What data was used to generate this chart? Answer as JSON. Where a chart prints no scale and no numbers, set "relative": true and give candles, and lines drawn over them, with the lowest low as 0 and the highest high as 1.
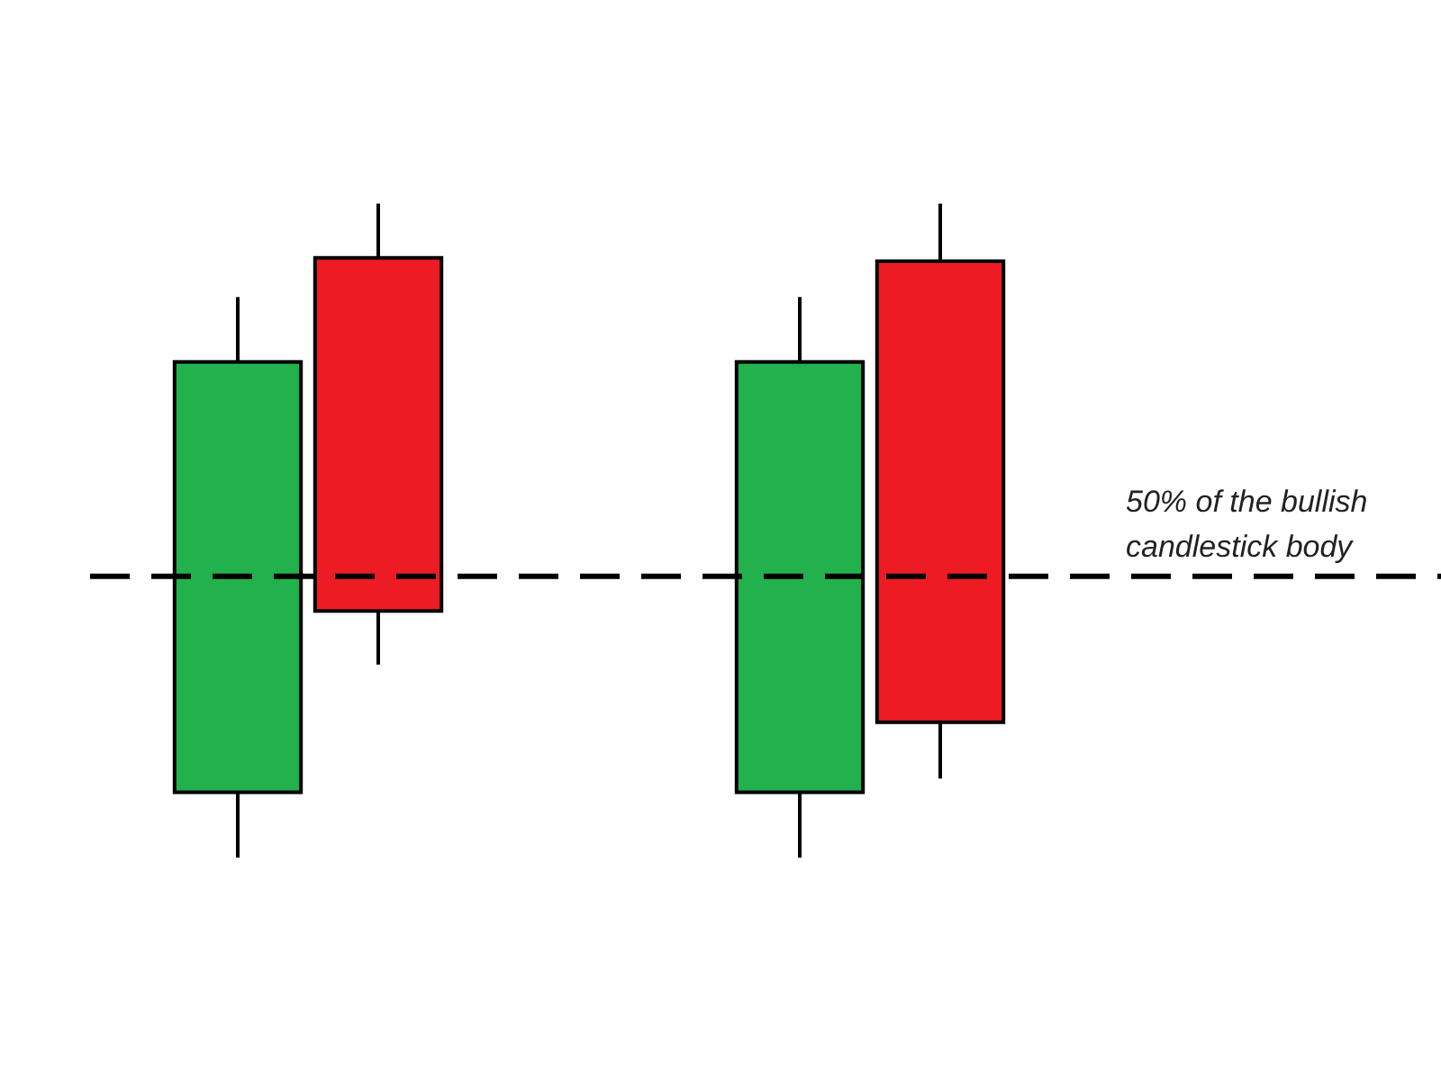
{
  "chart_data": {
    "type": "candlestick",
    "relative": true,
    "categories": [
      null,
      null,
      null,
      null,
      null,
      null
    ],
    "ohlc": [
      [
        0.1,
        0.857,
        0,
        0.758
      ],
      [
        0.917,
        1,
        0.295,
        0.377
      ],
      null,
      null,
      [
        0.1,
        0.857,
        0,
        0.758
      ],
      [
        0.912,
        1,
        0.121,
        0.207
      ]
    ],
    "colors": [
      "#22b14c",
      "#ed1c24",
      null,
      null,
      "#22b14c",
      "#ed1c24"
    ],
    "ref_lines": [
      {
        "axis": "y",
        "value": 0.43,
        "label": "50% of the bullish candlestick body",
        "color": "#000000",
        "line_style": "dashed"
      }
    ],
    "legend": false,
    "tick_labels": false
  }
}
